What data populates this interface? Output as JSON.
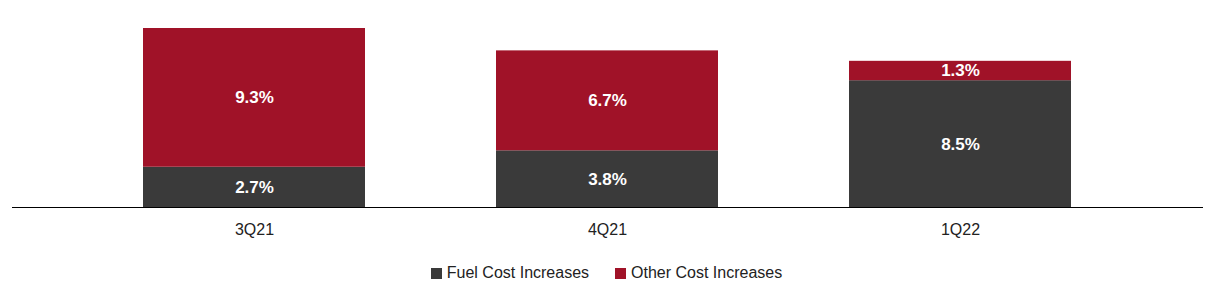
{
  "chart_data": {
    "type": "bar",
    "stacked": true,
    "data_labels": true,
    "tick_labels": "x",
    "legend": "bottom",
    "categories": [
      "3Q21",
      "4Q21",
      "1Q22"
    ],
    "series": [
      {
        "name": "Fuel Cost Increases",
        "color": "#3a3a3a",
        "values": [
          2.7,
          3.8,
          8.5
        ],
        "value_labels": [
          "2.7%",
          "3.8%",
          "8.5%"
        ]
      },
      {
        "name": "Other Cost Increases",
        "color": "#a01228",
        "values": [
          9.3,
          6.7,
          1.3
        ],
        "value_labels": [
          "9.3%",
          "6.7%",
          "1.3%"
        ]
      }
    ]
  }
}
